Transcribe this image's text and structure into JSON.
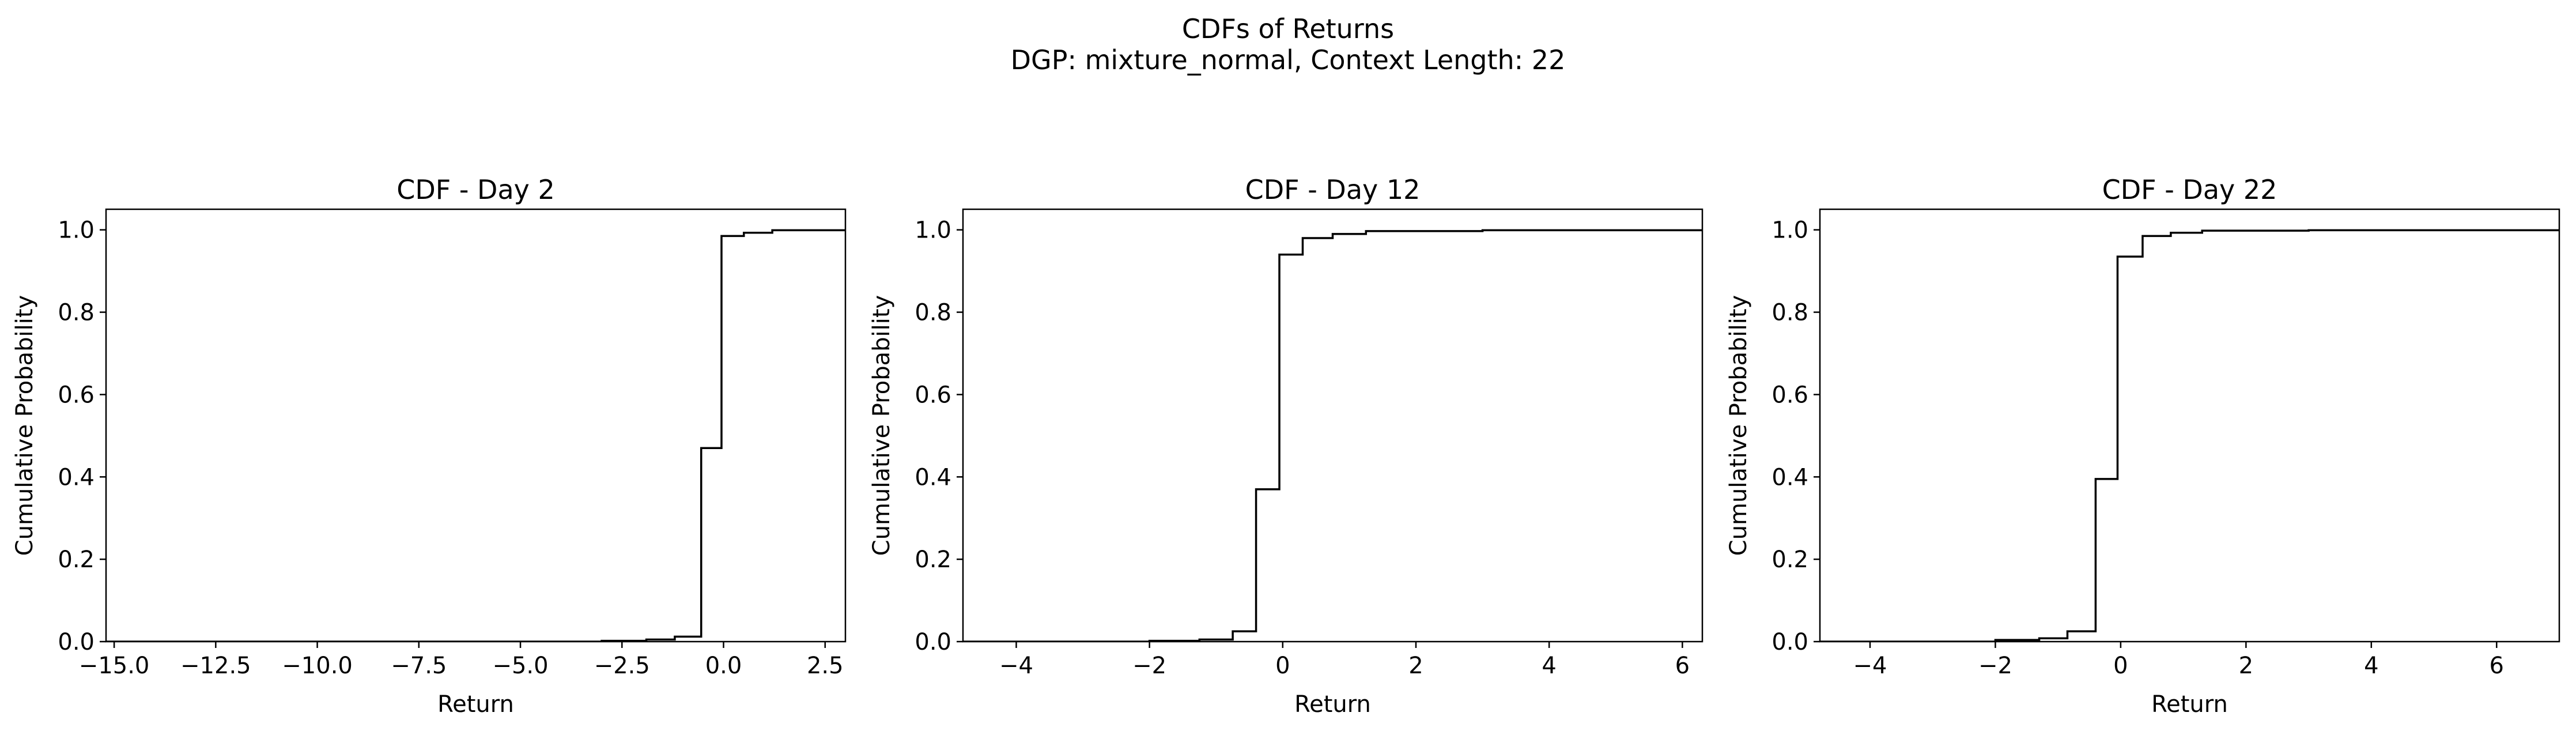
{
  "figure": {
    "title": "CDFs of Returns",
    "subtitle": "DGP: mixture_normal, Context Length: 22"
  },
  "chart_data": [
    {
      "type": "line",
      "step": true,
      "title": "CDF - Day 2",
      "xlabel": "Return",
      "ylabel": "Cumulative Probability",
      "xlim": [
        -15.2,
        3.0
      ],
      "ylim": [
        0.0,
        1.05
      ],
      "xticks": [
        -15.0,
        -12.5,
        -10.0,
        -7.5,
        -5.0,
        -2.5,
        0.0,
        2.5
      ],
      "xtick_labels": [
        "−15.0",
        "−12.5",
        "−10.0",
        "−7.5",
        "−5.0",
        "−2.5",
        "0.0",
        "2.5"
      ],
      "yticks": [
        0.0,
        0.2,
        0.4,
        0.6,
        0.8,
        1.0
      ],
      "ytick_labels": [
        "0.0",
        "0.2",
        "0.4",
        "0.6",
        "0.8",
        "1.0"
      ],
      "grid": false,
      "color": "#000000",
      "series": [
        {
          "x": [
            -15.2,
            -3.0,
            -1.9,
            -1.2,
            -0.55,
            -0.05,
            0.5,
            1.2,
            3.0
          ],
          "y": [
            0.0,
            0.002,
            0.005,
            0.012,
            0.47,
            0.985,
            0.993,
            0.999,
            1.0
          ]
        }
      ]
    },
    {
      "type": "line",
      "step": true,
      "title": "CDF - Day 12",
      "xlabel": "Return",
      "ylabel": "Cumulative Probability",
      "xlim": [
        -4.8,
        6.3
      ],
      "ylim": [
        0.0,
        1.05
      ],
      "xticks": [
        -4,
        -2,
        0,
        2,
        4,
        6
      ],
      "xtick_labels": [
        "−4",
        "−2",
        "0",
        "2",
        "4",
        "6"
      ],
      "yticks": [
        0.0,
        0.2,
        0.4,
        0.6,
        0.8,
        1.0
      ],
      "ytick_labels": [
        "0.0",
        "0.2",
        "0.4",
        "0.6",
        "0.8",
        "1.0"
      ],
      "grid": false,
      "color": "#000000",
      "series": [
        {
          "x": [
            -4.8,
            -2.0,
            -1.25,
            -0.75,
            -0.4,
            -0.05,
            0.3,
            0.75,
            1.25,
            3.0,
            6.3
          ],
          "y": [
            0.0,
            0.002,
            0.005,
            0.025,
            0.37,
            0.94,
            0.98,
            0.99,
            0.997,
            0.999,
            1.0
          ]
        }
      ]
    },
    {
      "type": "line",
      "step": true,
      "title": "CDF - Day 22",
      "xlabel": "Return",
      "ylabel": "Cumulative Probability",
      "xlim": [
        -4.8,
        7.0
      ],
      "ylim": [
        0.0,
        1.05
      ],
      "xticks": [
        -4,
        -2,
        0,
        2,
        4,
        6
      ],
      "xtick_labels": [
        "−4",
        "−2",
        "0",
        "2",
        "4",
        "6"
      ],
      "yticks": [
        0.0,
        0.2,
        0.4,
        0.6,
        0.8,
        1.0
      ],
      "ytick_labels": [
        "0.0",
        "0.2",
        "0.4",
        "0.6",
        "0.8",
        "1.0"
      ],
      "grid": false,
      "color": "#000000",
      "series": [
        {
          "x": [
            -4.8,
            -2.0,
            -1.3,
            -0.85,
            -0.4,
            -0.05,
            0.35,
            0.8,
            1.3,
            3.0,
            7.0
          ],
          "y": [
            0.0,
            0.004,
            0.008,
            0.025,
            0.395,
            0.935,
            0.985,
            0.993,
            0.998,
            0.999,
            1.0
          ]
        }
      ]
    }
  ]
}
